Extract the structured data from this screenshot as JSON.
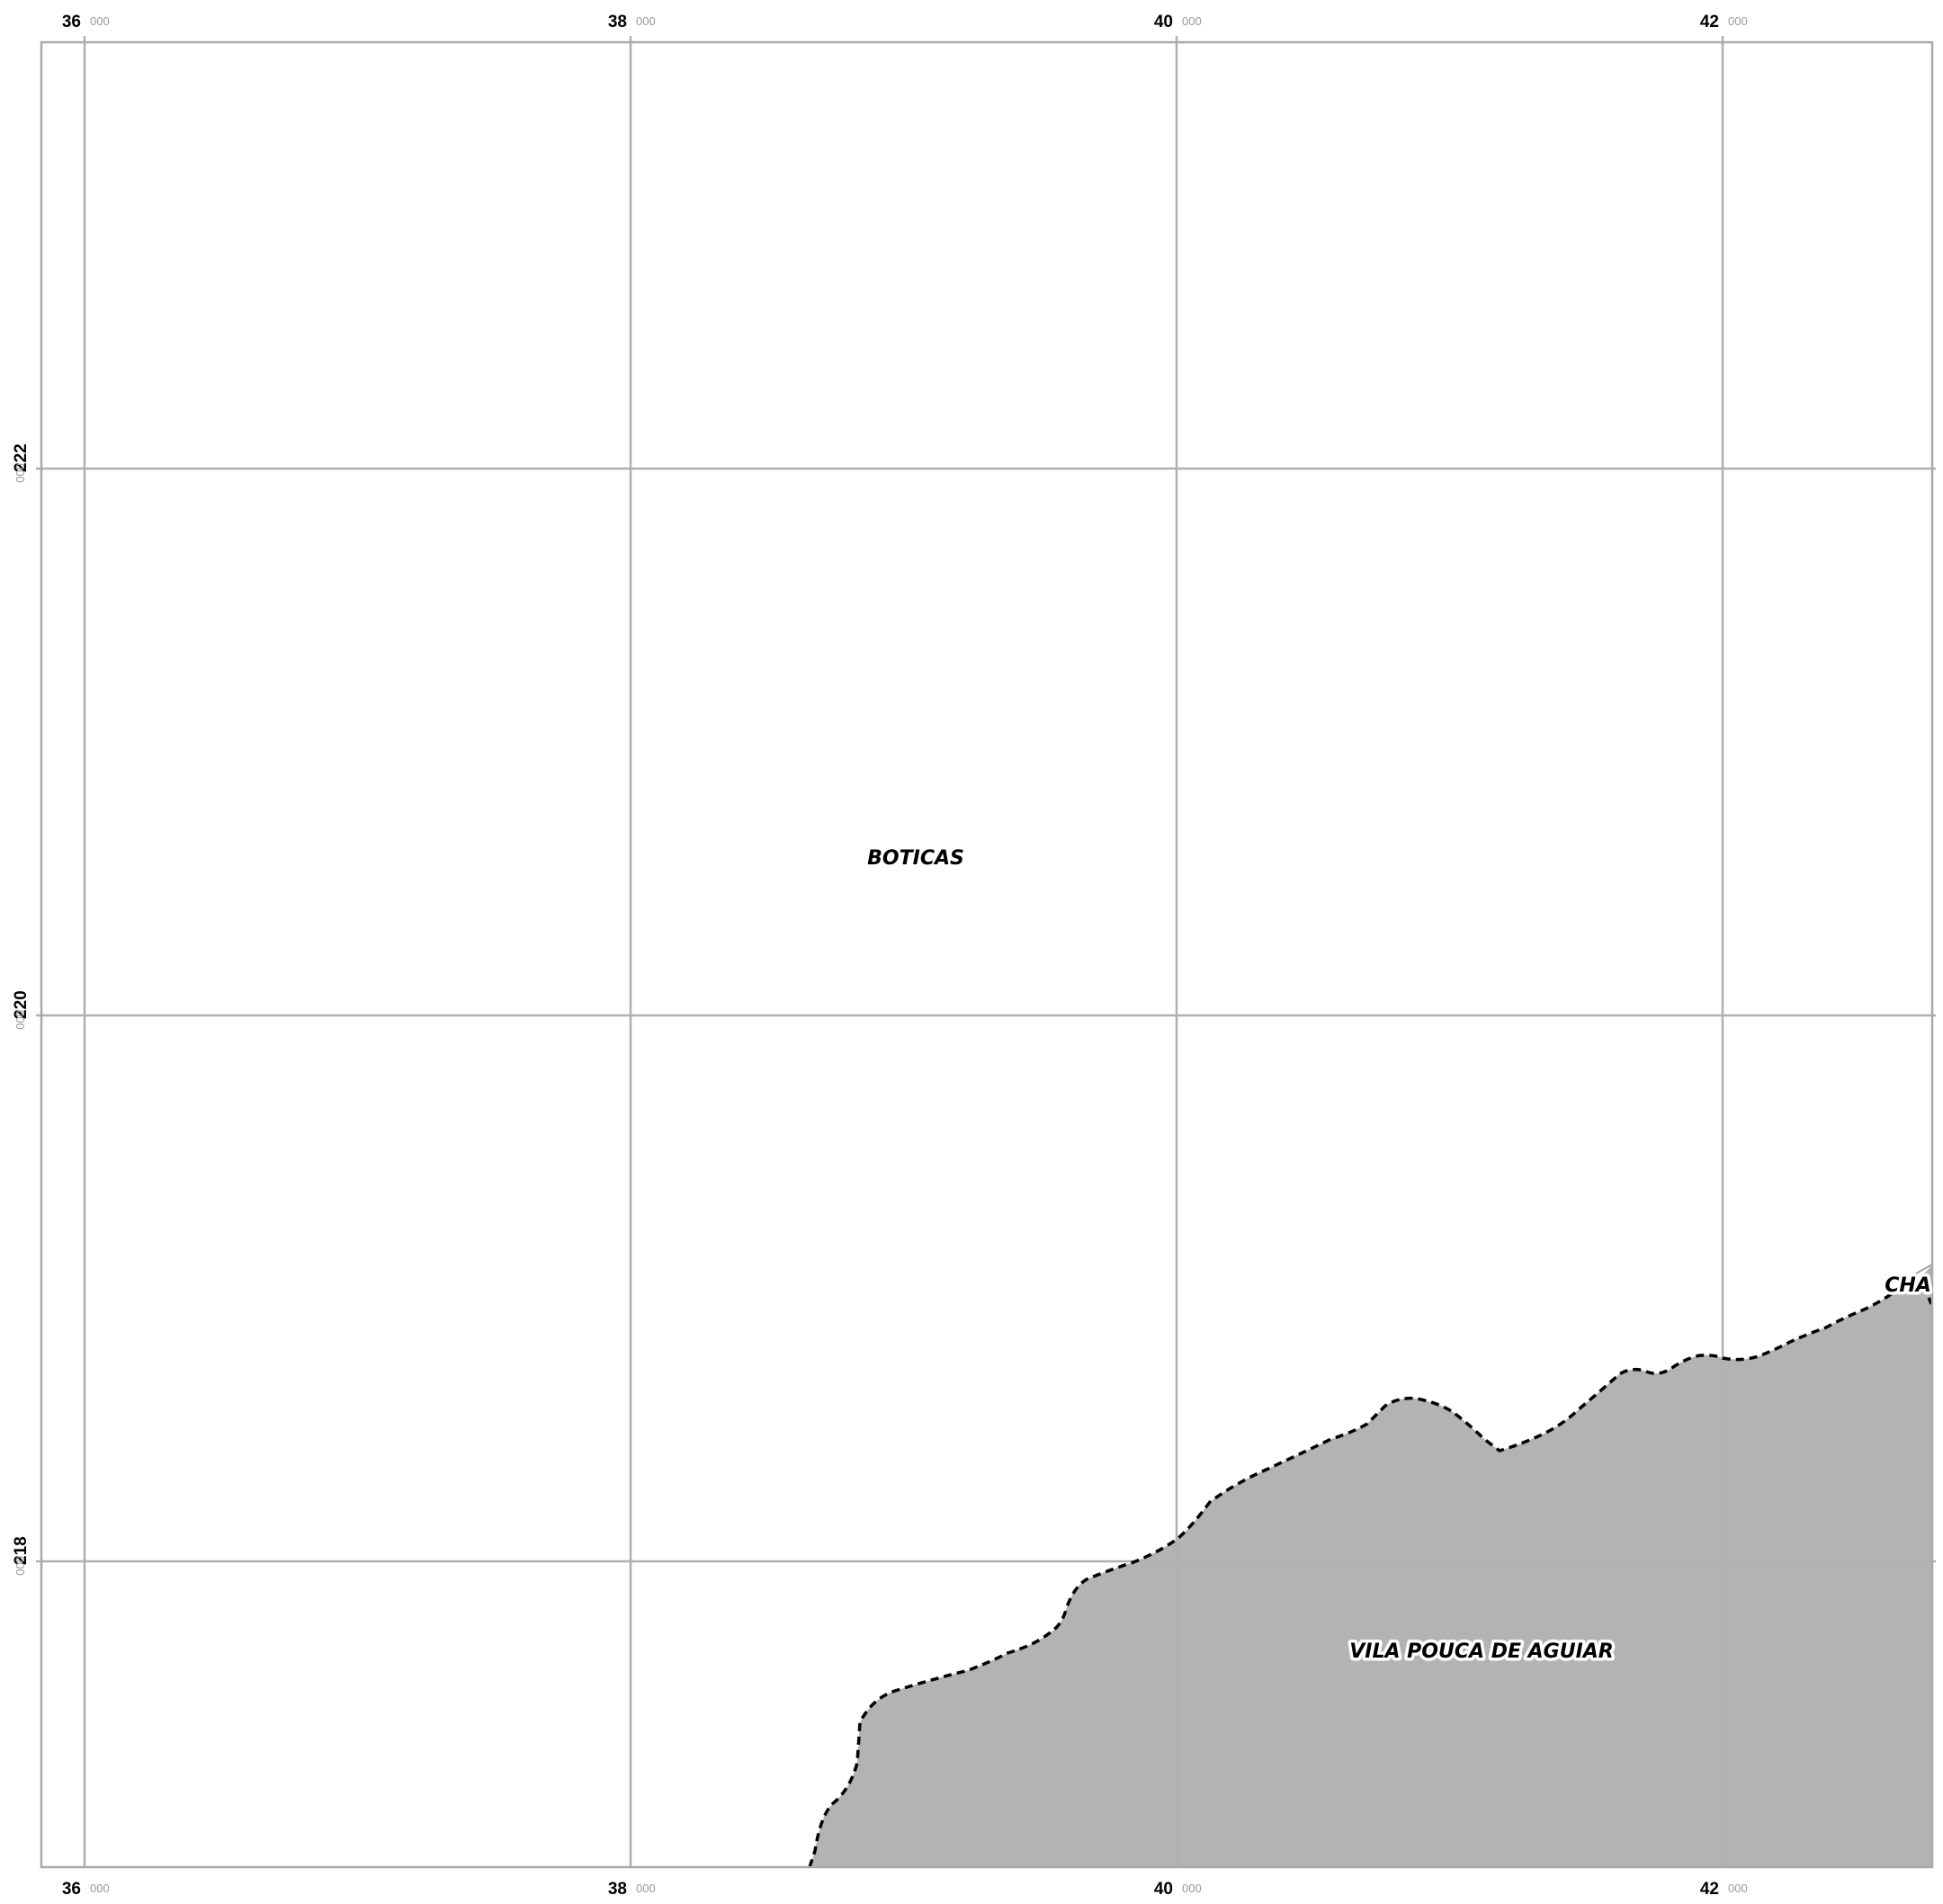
{
  "map": {
    "colors": {
      "background": "#ffffff",
      "grid": "#b0b0b0",
      "frame": "#a9a9a9",
      "region_fill": "#b3b3b3",
      "boundary": "#000000",
      "tick_major": "#000000",
      "tick_minor": "#9a9a9a"
    },
    "x_ticks": [
      {
        "major": "36",
        "minor": "000"
      },
      {
        "major": "38",
        "minor": "000"
      },
      {
        "major": "40",
        "minor": "000"
      },
      {
        "major": "42",
        "minor": "000"
      }
    ],
    "y_ticks": [
      {
        "major": "222",
        "minor": "000"
      },
      {
        "major": "220",
        "minor": "000"
      },
      {
        "major": "218",
        "minor": "000"
      }
    ],
    "labels": {
      "boticas": "BOTICAS",
      "vila_pouca": "VILA POUCA DE AGUIAR",
      "chaves": "CHA"
    },
    "boundary_style": "dashed",
    "shaded_region": "VILA POUCA DE AGUIAR"
  }
}
